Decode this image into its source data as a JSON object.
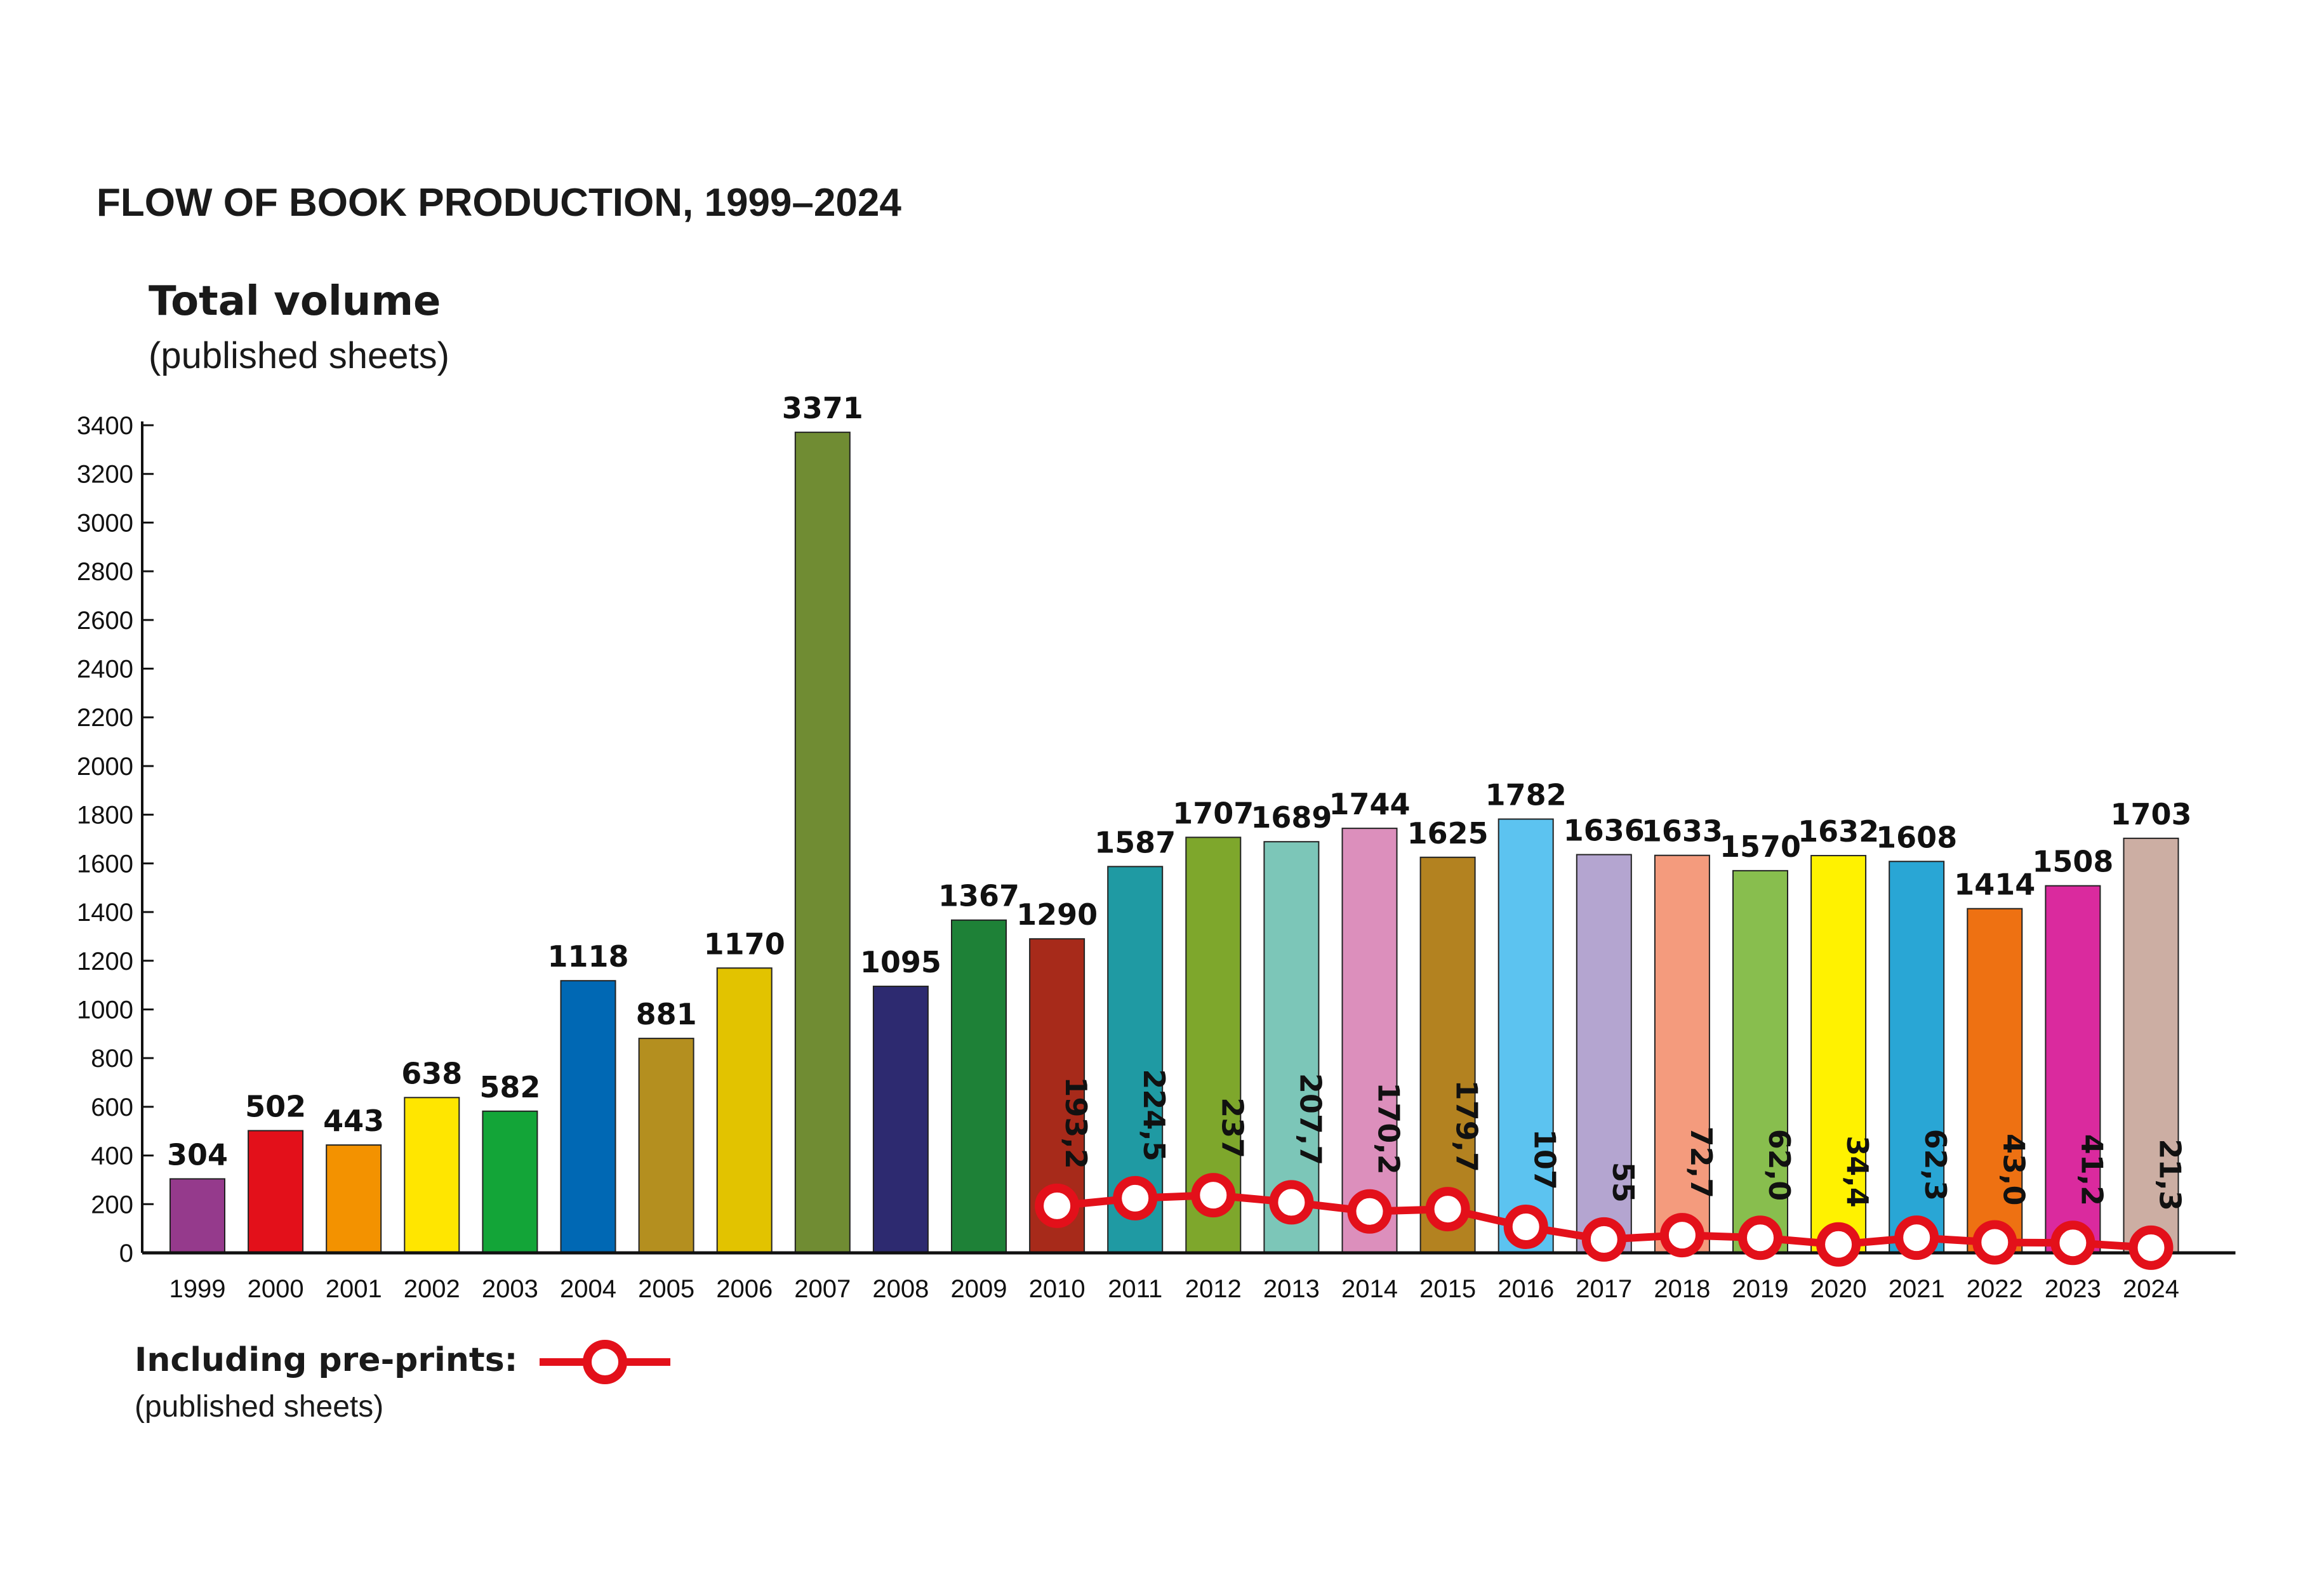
{
  "chart_data": {
    "type": "bar",
    "title": "FLOW OF BOOK PRODUCTION, 1999–2024",
    "ylabel": "Total volume",
    "ylabel_sub": "(published sheets)",
    "xlabel": "",
    "ylim": [
      0,
      3400
    ],
    "yticks": [
      0,
      200,
      400,
      600,
      800,
      1000,
      1200,
      1400,
      1600,
      1800,
      2000,
      2200,
      2400,
      2600,
      2800,
      3000,
      3200,
      3400
    ],
    "grid": false,
    "categories": [
      "1999",
      "2000",
      "2001",
      "2002",
      "2003",
      "2004",
      "2005",
      "2006",
      "2007",
      "2008",
      "2009",
      "2010",
      "2011",
      "2012",
      "2013",
      "2014",
      "2015",
      "2016",
      "2017",
      "2018",
      "2019",
      "2020",
      "2021",
      "2022",
      "2023",
      "2024"
    ],
    "values": [
      304,
      502,
      443,
      638,
      582,
      1118,
      881,
      1170,
      3371,
      1095,
      1367,
      1290,
      1587,
      1707,
      1689,
      1744,
      1625,
      1782,
      1636,
      1633,
      1570,
      1632,
      1608,
      1414,
      1508,
      1703
    ],
    "value_labels": [
      "304",
      "502",
      "443",
      "638",
      "582",
      "1118",
      "881",
      "1170",
      "3371",
      "1095",
      "1367",
      "1290",
      "1587",
      "1707",
      "1689",
      "1744",
      "1625",
      "1782",
      "1636",
      "1633",
      "1570",
      "1632",
      "1608",
      "1414",
      "1508",
      "1703"
    ],
    "bar_colors": [
      "#953a8c",
      "#e3101a",
      "#f39200",
      "#ffe600",
      "#13a538",
      "#0068b4",
      "#b48f1f",
      "#e2c300",
      "#708c33",
      "#2d2a70",
      "#1e8137",
      "#a72a1a",
      "#1f9aa3",
      "#7ea72c",
      "#7cc6b8",
      "#dc8fbc",
      "#b38220",
      "#5cc3f0",
      "#b4a5d0",
      "#f49b7d",
      "#88be4e",
      "#fff200",
      "#29a6d5",
      "#ee7112",
      "#da2a9e",
      "#ccaea3"
    ],
    "series": [
      {
        "name": "Including pre-prints:",
        "type": "line",
        "color": "#e3101a",
        "x": [
          "2010",
          "2011",
          "2012",
          "2013",
          "2014",
          "2015",
          "2016",
          "2017",
          "2018",
          "2019",
          "2020",
          "2021",
          "2022",
          "2023",
          "2024"
        ],
        "values": [
          193.2,
          224.5,
          237,
          207.7,
          170.2,
          179.7,
          107,
          55,
          72.7,
          62.0,
          34.4,
          62.3,
          43.0,
          41.2,
          21.3
        ],
        "labels": [
          "193,2",
          "224,5",
          "237",
          "207,7",
          "170,2",
          "179,7",
          "107",
          "55",
          "72,7",
          "62,0",
          "34,4",
          "62,3",
          "43,0",
          "41,2",
          "21,3"
        ]
      }
    ],
    "legend": {
      "placement": "bottom-left",
      "title": "Including pre-prints:",
      "subtitle": "(published sheets)"
    }
  }
}
